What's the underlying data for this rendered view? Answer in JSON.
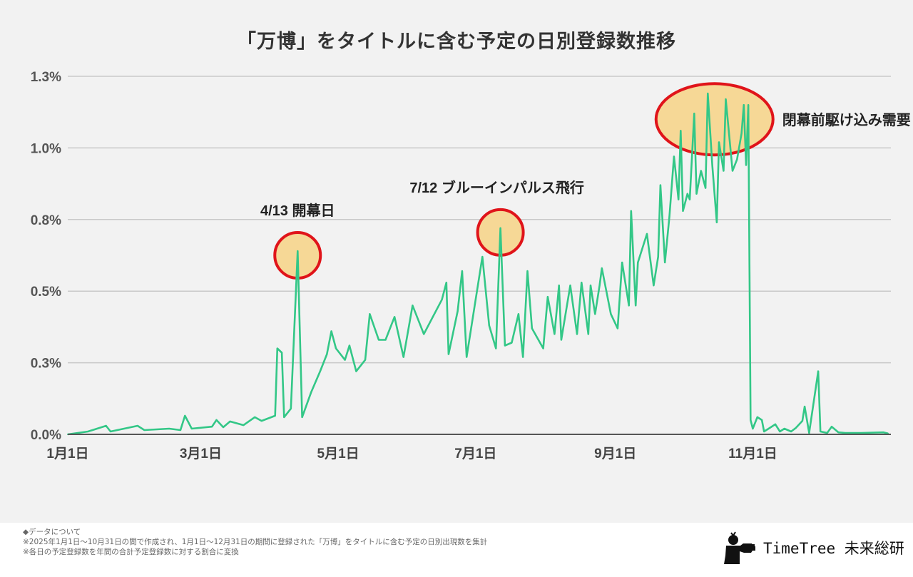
{
  "chart_data": {
    "type": "line",
    "title": "「万博」をタイトルに含む予定の日別登録数推移",
    "xlabel": "",
    "ylabel": "",
    "x_tick_labels": [
      {
        "date": "2025-01-01",
        "label": "1月1日"
      },
      {
        "date": "2025-03-01",
        "label": "3月1日"
      },
      {
        "date": "2025-05-01",
        "label": "5月1日"
      },
      {
        "date": "2025-07-01",
        "label": "7月1日"
      },
      {
        "date": "2025-09-01",
        "label": "9月1日"
      },
      {
        "date": "2025-11-01",
        "label": "11月1日"
      }
    ],
    "xlim": [
      "2025-01-01",
      "2025-12-31"
    ],
    "y_unit": "%",
    "ylim": [
      0,
      1.25
    ],
    "y_ticks": [
      {
        "value": 0,
        "label": "0.0%"
      },
      {
        "value": 0.25,
        "label": "0.3%"
      },
      {
        "value": 0.5,
        "label": "0.5%"
      },
      {
        "value": 0.75,
        "label": "0.8%"
      },
      {
        "value": 1.0,
        "label": "1.0%"
      },
      {
        "value": 1.25,
        "label": "1.3%"
      }
    ],
    "grid": true,
    "line_color": "#33c787",
    "series": [
      {
        "points": [
          [
            "2025-01-01",
            0.0
          ],
          [
            "2025-01-10",
            0.01
          ],
          [
            "2025-01-18",
            0.03
          ],
          [
            "2025-01-20",
            0.01
          ],
          [
            "2025-02-01",
            0.03
          ],
          [
            "2025-02-04",
            0.015
          ],
          [
            "2025-02-15",
            0.02
          ],
          [
            "2025-02-20",
            0.015
          ],
          [
            "2025-02-22",
            0.065
          ],
          [
            "2025-02-25",
            0.02
          ],
          [
            "2025-03-06",
            0.027
          ],
          [
            "2025-03-08",
            0.05
          ],
          [
            "2025-03-11",
            0.025
          ],
          [
            "2025-03-14",
            0.045
          ],
          [
            "2025-03-20",
            0.032
          ],
          [
            "2025-03-25",
            0.06
          ],
          [
            "2025-03-28",
            0.047
          ],
          [
            "2025-04-03",
            0.065
          ],
          [
            "2025-04-04",
            0.3
          ],
          [
            "2025-04-06",
            0.285
          ],
          [
            "2025-04-07",
            0.06
          ],
          [
            "2025-04-10",
            0.09
          ],
          [
            "2025-04-13",
            0.64
          ],
          [
            "2025-04-15",
            0.06
          ],
          [
            "2025-04-19",
            0.147
          ],
          [
            "2025-04-23",
            0.22
          ],
          [
            "2025-04-26",
            0.28
          ],
          [
            "2025-04-28",
            0.36
          ],
          [
            "2025-04-30",
            0.3
          ],
          [
            "2025-05-04",
            0.26
          ],
          [
            "2025-05-06",
            0.31
          ],
          [
            "2025-05-09",
            0.22
          ],
          [
            "2025-05-13",
            0.26
          ],
          [
            "2025-05-15",
            0.42
          ],
          [
            "2025-05-19",
            0.33
          ],
          [
            "2025-05-22",
            0.33
          ],
          [
            "2025-05-26",
            0.41
          ],
          [
            "2025-05-30",
            0.27
          ],
          [
            "2025-06-03",
            0.45
          ],
          [
            "2025-06-05",
            0.41
          ],
          [
            "2025-06-08",
            0.35
          ],
          [
            "2025-06-12",
            0.41
          ],
          [
            "2025-06-16",
            0.47
          ],
          [
            "2025-06-18",
            0.53
          ],
          [
            "2025-06-19",
            0.28
          ],
          [
            "2025-06-23",
            0.43
          ],
          [
            "2025-06-25",
            0.57
          ],
          [
            "2025-06-27",
            0.27
          ],
          [
            "2025-07-01",
            0.47
          ],
          [
            "2025-07-04",
            0.62
          ],
          [
            "2025-07-07",
            0.38
          ],
          [
            "2025-07-10",
            0.3
          ],
          [
            "2025-07-12",
            0.72
          ],
          [
            "2025-07-14",
            0.31
          ],
          [
            "2025-07-17",
            0.32
          ],
          [
            "2025-07-20",
            0.42
          ],
          [
            "2025-07-22",
            0.27
          ],
          [
            "2025-07-24",
            0.57
          ],
          [
            "2025-07-26",
            0.37
          ],
          [
            "2025-07-31",
            0.3
          ],
          [
            "2025-08-02",
            0.48
          ],
          [
            "2025-08-05",
            0.35
          ],
          [
            "2025-08-07",
            0.52
          ],
          [
            "2025-08-08",
            0.33
          ],
          [
            "2025-08-12",
            0.52
          ],
          [
            "2025-08-15",
            0.35
          ],
          [
            "2025-08-17",
            0.53
          ],
          [
            "2025-08-20",
            0.35
          ],
          [
            "2025-08-21",
            0.52
          ],
          [
            "2025-08-23",
            0.42
          ],
          [
            "2025-08-25",
            0.52
          ],
          [
            "2025-08-26",
            0.58
          ],
          [
            "2025-08-30",
            0.42
          ],
          [
            "2025-09-02",
            0.37
          ],
          [
            "2025-09-04",
            0.6
          ],
          [
            "2025-09-07",
            0.45
          ],
          [
            "2025-09-08",
            0.78
          ],
          [
            "2025-09-10",
            0.45
          ],
          [
            "2025-09-11",
            0.6
          ],
          [
            "2025-09-15",
            0.7
          ],
          [
            "2025-09-18",
            0.52
          ],
          [
            "2025-09-20",
            0.62
          ],
          [
            "2025-09-21",
            0.87
          ],
          [
            "2025-09-23",
            0.6
          ],
          [
            "2025-09-25",
            0.76
          ],
          [
            "2025-09-27",
            0.97
          ],
          [
            "2025-09-29",
            0.82
          ],
          [
            "2025-09-30",
            1.06
          ],
          [
            "2025-10-01",
            0.78
          ],
          [
            "2025-10-03",
            0.84
          ],
          [
            "2025-10-04",
            0.82
          ],
          [
            "2025-10-06",
            1.12
          ],
          [
            "2025-10-07",
            0.84
          ],
          [
            "2025-10-09",
            0.92
          ],
          [
            "2025-10-11",
            0.86
          ],
          [
            "2025-10-12",
            1.19
          ],
          [
            "2025-10-14",
            0.94
          ],
          [
            "2025-10-16",
            0.74
          ],
          [
            "2025-10-17",
            1.02
          ],
          [
            "2025-10-19",
            0.92
          ],
          [
            "2025-10-20",
            1.17
          ],
          [
            "2025-10-23",
            0.92
          ],
          [
            "2025-10-25",
            0.96
          ],
          [
            "2025-10-27",
            1.05
          ],
          [
            "2025-10-28",
            1.15
          ],
          [
            "2025-10-29",
            0.94
          ],
          [
            "2025-10-30",
            1.15
          ],
          [
            "2025-10-31",
            0.05
          ],
          [
            "2025-11-01",
            0.02
          ],
          [
            "2025-11-03",
            0.06
          ],
          [
            "2025-11-05",
            0.05
          ],
          [
            "2025-11-06",
            0.01
          ],
          [
            "2025-11-08",
            0.02
          ],
          [
            "2025-11-11",
            0.035
          ],
          [
            "2025-11-13",
            0.01
          ],
          [
            "2025-11-15",
            0.02
          ],
          [
            "2025-11-18",
            0.01
          ],
          [
            "2025-11-20",
            0.022
          ],
          [
            "2025-11-23",
            0.047
          ],
          [
            "2025-11-24",
            0.097
          ],
          [
            "2025-11-26",
            0.005
          ],
          [
            "2025-11-30",
            0.22
          ],
          [
            "2025-12-01",
            0.01
          ],
          [
            "2025-12-04",
            0.005
          ],
          [
            "2025-12-06",
            0.027
          ],
          [
            "2025-12-09",
            0.007
          ],
          [
            "2025-12-12",
            0.005
          ],
          [
            "2025-12-19",
            0.005
          ],
          [
            "2025-12-29",
            0.007
          ],
          [
            "2025-12-31",
            0.003
          ]
        ]
      }
    ],
    "annotations": [
      {
        "label": "4/13 開幕日",
        "date": "2025-04-13",
        "value": 0.64,
        "shape": "circle"
      },
      {
        "label": "7/12 ブルーインパルス飛行",
        "date": "2025-07-12",
        "value": 0.72,
        "shape": "circle"
      },
      {
        "label": "閉幕前駆け込み需要",
        "date": "2025-10-15",
        "value": 1.1,
        "shape": "ellipse"
      }
    ],
    "annotation_colors": {
      "fill": "#f6d896",
      "stroke": "#e0141a"
    }
  },
  "footer": {
    "heading": "◆データについて",
    "note1": "※2025年1月1日～10月31日の間で作成され、1月1日～12月31日の期間に登録された「万博」をタイトルに含む予定の日別出現数を集計",
    "note2": "※各日の予定登録数を年間の合計予定登録数に対する割合に変換",
    "brand": "TimeTree 未来総研"
  }
}
